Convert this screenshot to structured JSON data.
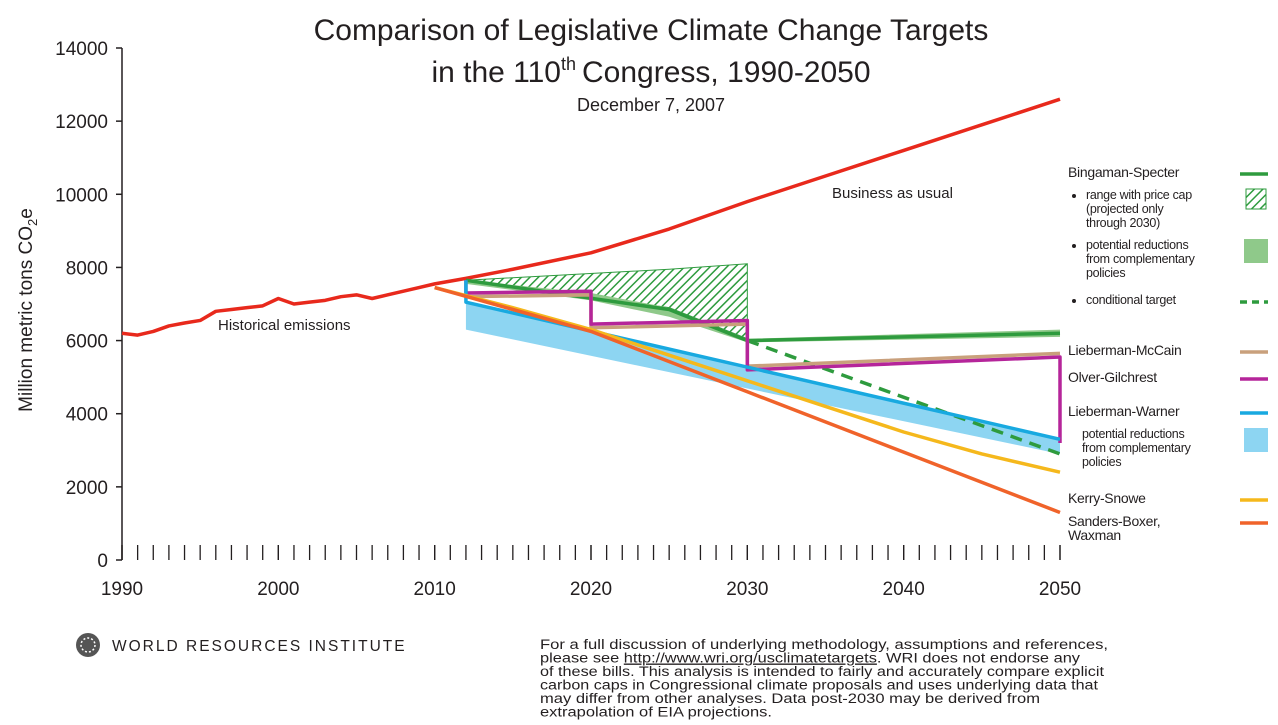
{
  "chart_data": {
    "type": "line",
    "title": "Comparison of Legislative Climate Change Targets",
    "title_line2": [
      "in the 110",
      "th",
      "Congress, 1990-2050"
    ],
    "subtitle": "December 7, 2007",
    "ylabel": [
      "Million metric tons CO",
      "2",
      "e"
    ],
    "annotations": [
      "Historical emissions"
    ],
    "xlim": [
      1990,
      2050
    ],
    "xticks": [
      1990,
      2000,
      2010,
      2020,
      2030,
      2040,
      2050
    ],
    "xminorticks": [
      1990,
      1991,
      1992,
      1993,
      1994,
      1995,
      1996,
      1997,
      1998,
      1999,
      2000,
      2001,
      2002,
      2003,
      2004,
      2005,
      2006,
      2007,
      2008,
      2009,
      2010,
      2011,
      2012,
      2013,
      2014,
      2015,
      2016,
      2017,
      2018,
      2019,
      2020,
      2021,
      2022,
      2023,
      2024,
      2025,
      2026,
      2027,
      2028,
      2029,
      2030,
      2031,
      2032,
      2033,
      2034,
      2035,
      2036,
      2037,
      2038,
      2039,
      2040,
      2041,
      2042,
      2043,
      2044,
      2045,
      2046,
      2047,
      2048,
      2049,
      2050
    ],
    "ylim": [
      0,
      14000
    ],
    "yticks": [
      0,
      2000,
      4000,
      6000,
      8000,
      10000,
      12000,
      14000
    ],
    "grid": false,
    "series": [
      {
        "name": "Business as usual",
        "style": "line",
        "color": "#e8291c",
        "x": [
          1990,
          1991,
          1992,
          1993,
          1994,
          1995,
          1996,
          1997,
          1998,
          1999,
          2000,
          2001,
          2002,
          2003,
          2004,
          2005,
          2006,
          2007,
          2008,
          2009,
          2010,
          2012,
          2015,
          2020,
          2025,
          2030,
          2035,
          2040,
          2045,
          2050
        ],
        "values": [
          6200,
          6150,
          6250,
          6400,
          6480,
          6550,
          6800,
          6850,
          6900,
          6950,
          7150,
          7000,
          7050,
          7100,
          7200,
          7250,
          7150,
          7250,
          7350,
          7450,
          7550,
          7700,
          7950,
          8400,
          9050,
          9800,
          10500,
          11200,
          11900,
          12600
        ]
      },
      {
        "name": "Bingaman-Specter",
        "style": "line",
        "color": "#2e9b3e",
        "x": [
          2012,
          2025,
          2030,
          2050
        ],
        "values": [
          7650,
          6850,
          6000,
          6200
        ]
      },
      {
        "name": "range with price cap\n(projected only\nthrough 2030)",
        "style": "hatch",
        "color": "#2e9b3e",
        "x": [
          2012,
          2025,
          2030
        ],
        "values": [
          7650,
          7950,
          8100
        ],
        "lower": [
          7650,
          6900,
          6050
        ]
      },
      {
        "name": "potential reductions\nfrom complementary\npolicies",
        "style": "band",
        "color": "#8fc98a",
        "x": [
          2012,
          2020,
          2025,
          2030,
          2050
        ],
        "values": [
          7650,
          7300,
          6900,
          6050,
          6300
        ],
        "lower": [
          7550,
          7100,
          6650,
          5950,
          6100
        ]
      },
      {
        "name": "conditional target",
        "style": "dashed",
        "color": "#2e9b3e",
        "x": [
          2030,
          2050
        ],
        "values": [
          6000,
          2900
        ]
      },
      {
        "name": "Lieberman-McCain",
        "style": "line",
        "color": "#c9a07c",
        "x": [
          2012,
          2020,
          2020,
          2030,
          2030,
          2050
        ],
        "values": [
          7200,
          7250,
          6350,
          6450,
          5300,
          5650
        ]
      },
      {
        "name": "Olver-Gilchrest",
        "style": "line",
        "color": "#b5259a",
        "x": [
          2012,
          2012,
          2020,
          2020,
          2030,
          2030,
          2050,
          2050
        ],
        "values": [
          7650,
          7300,
          7350,
          6450,
          6550,
          5200,
          5550,
          3200
        ]
      },
      {
        "name": "Lieberman-Warner",
        "style": "line",
        "color": "#18a9e0",
        "x": [
          2012,
          2012,
          2050
        ],
        "values": [
          7650,
          7050,
          3300
        ]
      },
      {
        "name": "potential reductions\nfrom complementary\npolicies",
        "style": "band",
        "color": "#8dd5f2",
        "x": [
          2012,
          2050
        ],
        "values": [
          7050,
          3300
        ],
        "lower": [
          6300,
          2900
        ]
      },
      {
        "name": "Kerry-Snowe",
        "style": "line",
        "color": "#f5b81c",
        "x": [
          2010,
          2015,
          2020,
          2025,
          2030,
          2035,
          2040,
          2045,
          2050
        ],
        "values": [
          7450,
          6900,
          6300,
          5600,
          4900,
          4200,
          3500,
          2900,
          2400
        ]
      },
      {
        "name": "Sanders-Boxer,\nWaxman",
        "style": "line",
        "color": "#f0632a",
        "x": [
          2010,
          2020,
          2030,
          2040,
          2050
        ],
        "values": [
          7450,
          6250,
          4600,
          2950,
          1300
        ]
      }
    ]
  },
  "footer": {
    "organization": "WORLD RESOURCES INSTITUTE",
    "note_lines": [
      [
        "For a full discussion of underlying methodology, assumptions and references,"
      ],
      [
        "please see ",
        "http://www.wri.org/usclimatetargets",
        ". WRI does not endorse any"
      ],
      [
        "of these bills. This analysis is intended to fairly and accurately compare explicit"
      ],
      [
        "carbon caps in Congressional climate proposals and uses underlying data that"
      ],
      [
        "may differ from other analyses.  Data post-2030 may be derived from"
      ],
      [
        "extrapolation of EIA projections."
      ]
    ]
  }
}
